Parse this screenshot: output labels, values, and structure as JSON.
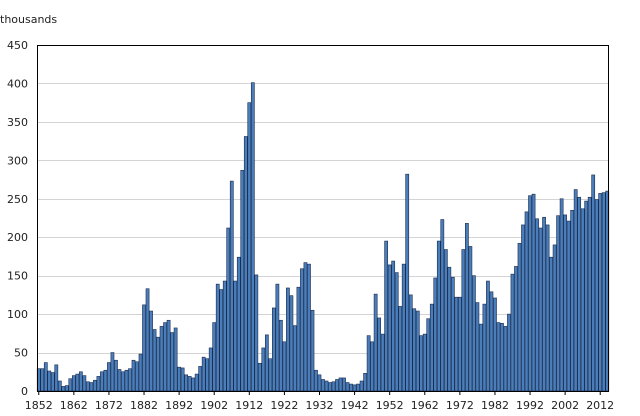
{
  "chart_data": {
    "type": "bar",
    "ylabel": "thousands",
    "ylim": [
      0,
      450
    ],
    "yticks": [
      0,
      50,
      100,
      150,
      200,
      250,
      300,
      350,
      400,
      450
    ],
    "xtick_labels": [
      "1852",
      "1862",
      "1872",
      "1882",
      "1892",
      "1902",
      "1912",
      "1922",
      "1932",
      "1942",
      "1952",
      "1962",
      "1972",
      "1982",
      "1992",
      "2002",
      "2012"
    ],
    "x_start": 1852,
    "x_end": 2014,
    "grid": "horizontal",
    "colors": {
      "bar_fill": "#4a7ebb",
      "bar_stroke": "#1a2a4a",
      "grid": "#d4d4d4",
      "axis": "#000000"
    },
    "categories": [
      1852,
      1853,
      1854,
      1855,
      1856,
      1857,
      1858,
      1859,
      1860,
      1861,
      1862,
      1863,
      1864,
      1865,
      1866,
      1867,
      1868,
      1869,
      1870,
      1871,
      1872,
      1873,
      1874,
      1875,
      1876,
      1877,
      1878,
      1879,
      1880,
      1881,
      1882,
      1883,
      1884,
      1885,
      1886,
      1887,
      1888,
      1889,
      1890,
      1891,
      1892,
      1893,
      1894,
      1895,
      1896,
      1897,
      1898,
      1899,
      1900,
      1901,
      1902,
      1903,
      1904,
      1905,
      1906,
      1907,
      1908,
      1909,
      1910,
      1911,
      1912,
      1913,
      1914,
      1915,
      1916,
      1917,
      1918,
      1919,
      1920,
      1921,
      1922,
      1923,
      1924,
      1925,
      1926,
      1927,
      1928,
      1929,
      1930,
      1931,
      1932,
      1933,
      1934,
      1935,
      1936,
      1937,
      1938,
      1939,
      1940,
      1941,
      1942,
      1943,
      1944,
      1945,
      1946,
      1947,
      1948,
      1949,
      1950,
      1951,
      1952,
      1953,
      1954,
      1955,
      1956,
      1957,
      1958,
      1959,
      1960,
      1961,
      1962,
      1963,
      1964,
      1965,
      1966,
      1967,
      1968,
      1969,
      1970,
      1971,
      1972,
      1973,
      1974,
      1975,
      1976,
      1977,
      1978,
      1979,
      1980,
      1981,
      1982,
      1983,
      1984,
      1985,
      1986,
      1987,
      1988,
      1989,
      1990,
      1991,
      1992,
      1993,
      1994,
      1995,
      1996,
      1997,
      1998,
      1999,
      2000,
      2001,
      2002,
      2003,
      2004,
      2005,
      2006,
      2007,
      2008,
      2009,
      2010,
      2011,
      2012,
      2013,
      2014
    ],
    "values": [
      29,
      29,
      37,
      26,
      24,
      34,
      13,
      6,
      7,
      16,
      20,
      22,
      25,
      20,
      12,
      11,
      14,
      19,
      25,
      27,
      37,
      50,
      40,
      28,
      25,
      27,
      29,
      40,
      38,
      48,
      112,
      133,
      104,
      80,
      70,
      84,
      89,
      92,
      76,
      82,
      31,
      30,
      21,
      19,
      17,
      22,
      32,
      44,
      42,
      56,
      89,
      139,
      132,
      143,
      212,
      273,
      143,
      174,
      287,
      331,
      375,
      401,
      151,
      36,
      56,
      73,
      42,
      108,
      139,
      92,
      64,
      134,
      124,
      85,
      135,
      159,
      167,
      165,
      105,
      27,
      21,
      15,
      13,
      11,
      12,
      15,
      17,
      17,
      11,
      9,
      8,
      9,
      13,
      23,
      72,
      64,
      126,
      95,
      74,
      195,
      164,
      169,
      154,
      110,
      165,
      282,
      125,
      107,
      104,
      72,
      74,
      94,
      113,
      147,
      195,
      223,
      184,
      161,
      148,
      122,
      122,
      184,
      218,
      188,
      150,
      115,
      87,
      113,
      143,
      129,
      121,
      89,
      88,
      84,
      100,
      152,
      162,
      192,
      216,
      233,
      254,
      256,
      224,
      212,
      226,
      216,
      174,
      190,
      228,
      250,
      229,
      221,
      235,
      262,
      252,
      237,
      247,
      252,
      281,
      249,
      257,
      258,
      260
    ]
  }
}
